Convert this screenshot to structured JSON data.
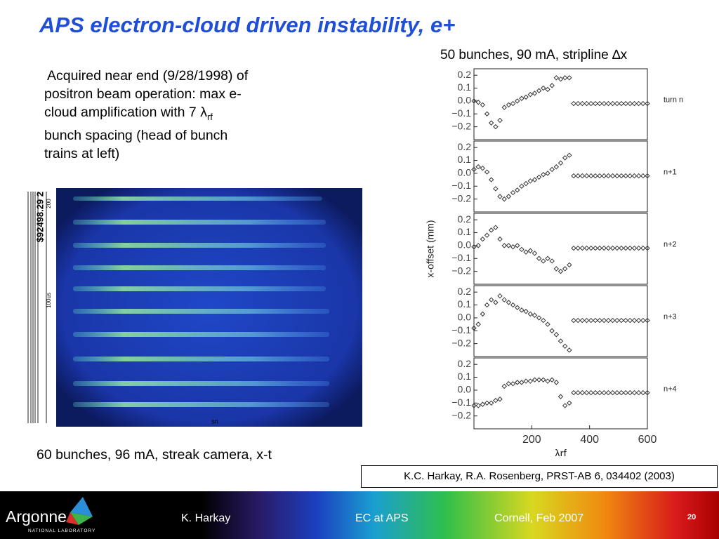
{
  "title": "APS electron-cloud driven instability, e+",
  "caption_right": "50 bunches, 90 mA, stripline ∆x",
  "description": {
    "lines": [
      "Acquired near end (9/28/1998) of",
      "positron beam operation: max e-",
      "cloud amplification with 7 λ",
      "bunch spacing (head of bunch",
      "trains at left)"
    ],
    "subscript": "rf"
  },
  "caption_left": "60 bunches, 96 mA, streak camera, x-t",
  "reference": "K.C. Harkay, R.A. Rosenberg, PRST-AB 6, 034402 (2003)",
  "image_labels": {
    "stamp": "$92498.29 2",
    "scale": "100us",
    "top": "200",
    "bottom": "sn"
  },
  "footer": {
    "logo": "Argonne",
    "logo_sub": "NATIONAL LABORATORY",
    "author": "K. Harkay",
    "topic": "EC at APS",
    "venue": "Cornell, Feb 2007",
    "page": "20"
  },
  "chart_data": [
    {
      "type": "scatter",
      "label": "turn n",
      "color": "#333333",
      "x": [
        0,
        15,
        30,
        45,
        60,
        75,
        90,
        105,
        120,
        135,
        150,
        165,
        180,
        195,
        210,
        225,
        240,
        255,
        270,
        285,
        300,
        315,
        330,
        345,
        360,
        375,
        390,
        405,
        420,
        435,
        450,
        465,
        480,
        495,
        510,
        525,
        540,
        555,
        570,
        585,
        600
      ],
      "values": [
        0,
        -0.01,
        -0.03,
        -0.1,
        -0.17,
        -0.2,
        -0.15,
        -0.05,
        -0.03,
        -0.02,
        0,
        0.02,
        0.03,
        0.05,
        0.06,
        0.08,
        0.1,
        0.09,
        0.12,
        0.18,
        0.17,
        0.18,
        0.18,
        -0.02,
        -0.02,
        -0.02,
        -0.02,
        -0.02,
        -0.02,
        -0.02,
        -0.02,
        -0.02,
        -0.02,
        -0.02,
        -0.02,
        -0.02,
        -0.02,
        -0.02,
        -0.02,
        -0.02,
        -0.02
      ],
      "xlim": [
        0,
        600
      ],
      "ylim": [
        -0.3,
        0.25
      ],
      "yticks": [
        0.2,
        0.1,
        {
          "value": 0,
          "label": "0.0"
        },
        {
          "value": -0.1,
          "label": "−0.1"
        },
        {
          "value": -0.2,
          "label": "−0.2"
        }
      ]
    },
    {
      "type": "scatter",
      "label": "n+1",
      "color": "#333333",
      "x": [
        0,
        15,
        30,
        45,
        60,
        75,
        90,
        105,
        120,
        135,
        150,
        165,
        180,
        195,
        210,
        225,
        240,
        255,
        270,
        285,
        300,
        315,
        330,
        345,
        360,
        375,
        390,
        405,
        420,
        435,
        450,
        465,
        480,
        495,
        510,
        525,
        540,
        555,
        570,
        585,
        600
      ],
      "values": [
        0.03,
        0.05,
        0.04,
        0.01,
        -0.05,
        -0.12,
        -0.18,
        -0.2,
        -0.18,
        -0.15,
        -0.13,
        -0.1,
        -0.08,
        -0.06,
        -0.05,
        -0.03,
        -0.01,
        0,
        0.03,
        0.05,
        0.08,
        0.12,
        0.14,
        -0.02,
        -0.02,
        -0.02,
        -0.02,
        -0.02,
        -0.02,
        -0.02,
        -0.02,
        -0.02,
        -0.02,
        -0.02,
        -0.02,
        -0.02,
        -0.02,
        -0.02,
        -0.02,
        -0.02,
        -0.02
      ],
      "xlim": [
        0,
        600
      ],
      "ylim": [
        -0.3,
        0.25
      ],
      "yticks": [
        0.2,
        0.1,
        {
          "value": 0,
          "label": "0.0"
        },
        {
          "value": -0.1,
          "label": "−0.1"
        },
        {
          "value": -0.2,
          "label": "−0.2"
        }
      ]
    },
    {
      "type": "scatter",
      "label": "n+2",
      "color": "#333333",
      "ylabel": "x-offset (mm)",
      "x": [
        0,
        15,
        30,
        45,
        60,
        75,
        90,
        105,
        120,
        135,
        150,
        165,
        180,
        195,
        210,
        225,
        240,
        255,
        270,
        285,
        300,
        315,
        330,
        345,
        360,
        375,
        390,
        405,
        420,
        435,
        450,
        465,
        480,
        495,
        510,
        525,
        540,
        555,
        570,
        585,
        600
      ],
      "values": [
        -0.01,
        0,
        0.05,
        0.08,
        0.12,
        0.14,
        0.05,
        0,
        0,
        -0.01,
        0,
        -0.03,
        -0.05,
        -0.04,
        -0.06,
        -0.1,
        -0.12,
        -0.1,
        -0.12,
        -0.18,
        -0.2,
        -0.18,
        -0.15,
        -0.02,
        -0.02,
        -0.02,
        -0.02,
        -0.02,
        -0.02,
        -0.02,
        -0.02,
        -0.02,
        -0.02,
        -0.02,
        -0.02,
        -0.02,
        -0.02,
        -0.02,
        -0.02,
        -0.02,
        -0.02
      ],
      "xlim": [
        0,
        600
      ],
      "ylim": [
        -0.3,
        0.25
      ],
      "yticks": [
        0.2,
        0.1,
        {
          "value": 0,
          "label": "0.0"
        },
        {
          "value": -0.1,
          "label": "−0.1"
        },
        {
          "value": -0.2,
          "label": "−0.2"
        }
      ]
    },
    {
      "type": "scatter",
      "label": "n+3",
      "color": "#333333",
      "x": [
        0,
        15,
        30,
        45,
        60,
        75,
        90,
        105,
        120,
        135,
        150,
        165,
        180,
        195,
        210,
        225,
        240,
        255,
        270,
        285,
        300,
        315,
        330,
        345,
        360,
        375,
        390,
        405,
        420,
        435,
        450,
        465,
        480,
        495,
        510,
        525,
        540,
        555,
        570,
        585,
        600
      ],
      "values": [
        -0.08,
        -0.05,
        0.03,
        0.1,
        0.14,
        0.12,
        0.17,
        0.14,
        0.12,
        0.1,
        0.08,
        0.06,
        0.05,
        0.03,
        0.02,
        0,
        -0.02,
        -0.05,
        -0.1,
        -0.13,
        -0.18,
        -0.22,
        -0.25,
        -0.02,
        -0.02,
        -0.02,
        -0.02,
        -0.02,
        -0.02,
        -0.02,
        -0.02,
        -0.02,
        -0.02,
        -0.02,
        -0.02,
        -0.02,
        -0.02,
        -0.02,
        -0.02,
        -0.02,
        -0.02
      ],
      "xlim": [
        0,
        600
      ],
      "ylim": [
        -0.3,
        0.25
      ],
      "yticks": [
        0.2,
        0.1,
        {
          "value": 0,
          "label": "0.0"
        },
        {
          "value": -0.1,
          "label": "−0.1"
        },
        {
          "value": -0.2,
          "label": "−0.2"
        }
      ]
    },
    {
      "type": "scatter",
      "label": "n+4",
      "color": "#333333",
      "xlabel": "λrf",
      "x": [
        0,
        15,
        30,
        45,
        60,
        75,
        90,
        105,
        120,
        135,
        150,
        165,
        180,
        195,
        210,
        225,
        240,
        255,
        270,
        285,
        300,
        315,
        330,
        345,
        360,
        375,
        390,
        405,
        420,
        435,
        450,
        465,
        480,
        495,
        510,
        525,
        540,
        555,
        570,
        585,
        600
      ],
      "values": [
        -0.12,
        -0.12,
        -0.11,
        -0.1,
        -0.1,
        -0.08,
        -0.07,
        0.03,
        0.05,
        0.05,
        0.06,
        0.06,
        0.07,
        0.07,
        0.08,
        0.08,
        0.08,
        0.07,
        0.08,
        0.06,
        -0.05,
        -0.12,
        -0.1,
        -0.02,
        -0.02,
        -0.02,
        -0.02,
        -0.02,
        -0.02,
        -0.02,
        -0.02,
        -0.02,
        -0.02,
        -0.02,
        -0.02,
        -0.02,
        -0.02,
        -0.02,
        -0.02,
        -0.02,
        -0.02
      ],
      "xlim": [
        0,
        600
      ],
      "ylim": [
        -0.3,
        0.25
      ],
      "xticks": [
        200,
        400,
        600
      ],
      "yticks": [
        0.2,
        0.1,
        {
          "value": 0,
          "label": "0.0"
        },
        {
          "value": -0.1,
          "label": "−0.1"
        },
        {
          "value": -0.2,
          "label": "−0.2"
        }
      ]
    }
  ]
}
